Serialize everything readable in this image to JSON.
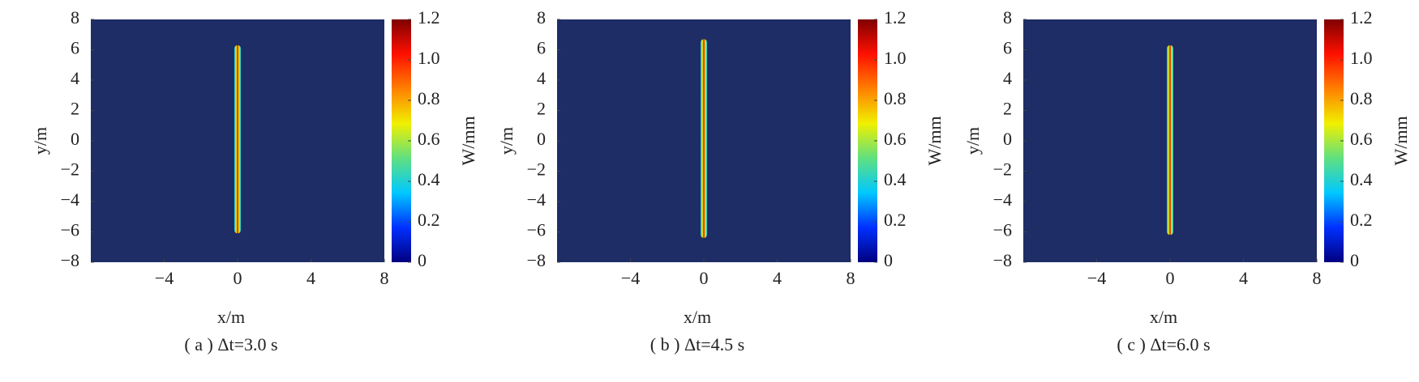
{
  "chart_data": [
    {
      "type": "field",
      "title": "( a ) Δt=3.0 s",
      "xlabel": "x/m",
      "ylabel": "y/m",
      "colorbar_label": "W/mm",
      "xlim": [
        -8,
        8
      ],
      "xticks": [
        {
          "value": -4,
          "label": "−4"
        },
        0,
        4,
        8
      ],
      "ylim": [
        -8,
        8
      ],
      "yticks": [
        {
          "value": -8,
          "label": "−8"
        },
        {
          "value": -6,
          "label": "−6"
        },
        {
          "value": -4,
          "label": "−4"
        },
        {
          "value": -2,
          "label": "−2"
        },
        0,
        2,
        4,
        6,
        8
      ],
      "clim": [
        0,
        1.2
      ],
      "cticks": [
        0,
        0.2,
        0.4,
        0.6,
        0.8,
        {
          "value": 1,
          "label": "1.0"
        },
        1.2
      ],
      "colormap": [
        "#00007f",
        "#0030ff",
        "#00c8ff",
        "#60e080",
        "#f0f000",
        "#ff8000",
        "#ff1000",
        "#7f0000"
      ],
      "background": "#1e2d66",
      "crack_x": 0,
      "crack_y": [
        -6.1,
        6.3
      ],
      "peak": 1.1
    },
    {
      "type": "field",
      "title": "( b ) Δt=4.5 s",
      "xlabel": "x/m",
      "ylabel": "y/m",
      "colorbar_label": "W/mm",
      "xlim": [
        -8,
        8
      ],
      "xticks": [
        {
          "value": -4,
          "label": "−4"
        },
        0,
        4,
        8
      ],
      "ylim": [
        -8,
        8
      ],
      "yticks": [
        {
          "value": -8,
          "label": "−8"
        },
        {
          "value": -6,
          "label": "−6"
        },
        {
          "value": -4,
          "label": "−4"
        },
        {
          "value": -2,
          "label": "−2"
        },
        0,
        2,
        4,
        6,
        8
      ],
      "clim": [
        0,
        1.2
      ],
      "cticks": [
        0,
        0.2,
        0.4,
        0.6,
        0.8,
        {
          "value": 1,
          "label": "1.0"
        },
        1.2
      ],
      "colormap": [
        "#00007f",
        "#0030ff",
        "#00c8ff",
        "#60e080",
        "#f0f000",
        "#ff8000",
        "#ff1000",
        "#7f0000"
      ],
      "background": "#1e2d66",
      "crack_x": 0,
      "crack_y": [
        -6.4,
        6.7
      ],
      "peak": 1.1
    },
    {
      "type": "field",
      "title": "( c ) Δt=6.0 s",
      "xlabel": "x/m",
      "ylabel": "y/m",
      "colorbar_label": "W/mm",
      "xlim": [
        -8,
        8
      ],
      "xticks": [
        {
          "value": -4,
          "label": "−4"
        },
        0,
        4,
        8
      ],
      "ylim": [
        -8,
        8
      ],
      "yticks": [
        {
          "value": -8,
          "label": "−8"
        },
        {
          "value": -6,
          "label": "−6"
        },
        {
          "value": -4,
          "label": "−4"
        },
        {
          "value": -2,
          "label": "−2"
        },
        0,
        2,
        4,
        6,
        8
      ],
      "clim": [
        0,
        1.2
      ],
      "cticks": [
        0,
        0.2,
        0.4,
        0.6,
        0.8,
        {
          "value": 1,
          "label": "1.0"
        },
        1.2
      ],
      "colormap": [
        "#00007f",
        "#0030ff",
        "#00c8ff",
        "#60e080",
        "#f0f000",
        "#ff8000",
        "#ff1000",
        "#7f0000"
      ],
      "background": "#1e2d66",
      "crack_x": 0,
      "crack_y": [
        -6.2,
        6.3
      ],
      "peak": 1.1
    }
  ]
}
